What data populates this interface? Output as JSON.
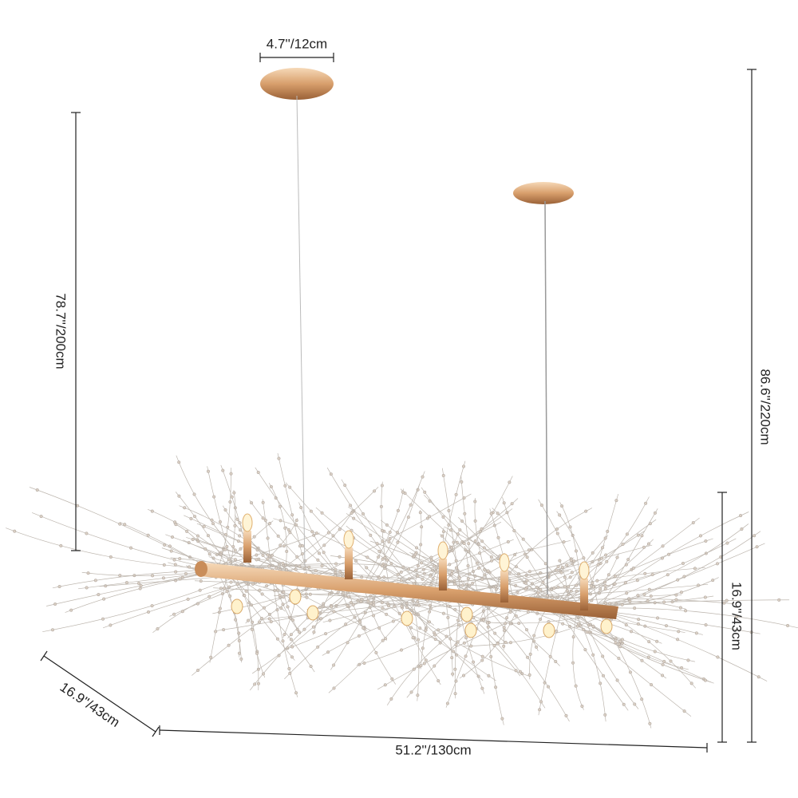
{
  "dimensions": {
    "canopy_width": "4.7''/12cm",
    "min_height": "78.7''/200cm",
    "max_height": "86.6''/220cm",
    "fixture_height": "16.9''/43cm",
    "fixture_depth": "16.9''/43cm",
    "fixture_length": "51.2''/130cm"
  }
}
